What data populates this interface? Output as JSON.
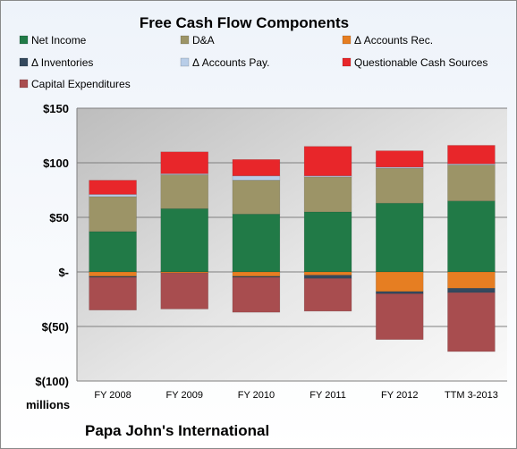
{
  "chart_data": {
    "type": "bar",
    "stacked": true,
    "title": "Free Cash Flow Components",
    "company": "Papa John's International",
    "y_unit_label": "millions",
    "categories": [
      "FY 2008",
      "FY 2009",
      "FY 2010",
      "FY 2011",
      "FY 2012",
      "TTM 3-2013"
    ],
    "ylim": [
      -100,
      150
    ],
    "yticks": [
      150,
      100,
      50,
      0,
      -50,
      -100
    ],
    "ytick_labels": [
      "$150",
      "$100",
      "$50",
      "$-",
      "$(50)",
      "$(100)"
    ],
    "grid": true,
    "legend_position": "top",
    "series": [
      {
        "name": "Net Income",
        "color": "#217a47",
        "values": [
          37,
          58,
          53,
          55,
          63,
          65
        ]
      },
      {
        "name": "D&A",
        "color": "#9c9467",
        "values": [
          32,
          31,
          31,
          32,
          32,
          33
        ]
      },
      {
        "name": "Δ Accounts Rec.",
        "color": "#e67e22",
        "values": [
          -4,
          -1,
          -4,
          -3,
          -18,
          -15
        ]
      },
      {
        "name": "Δ Inventories",
        "color": "#34495e",
        "values": [
          -1,
          0,
          -1,
          -3,
          -2,
          -4
        ]
      },
      {
        "name": "Δ Accounts Pay.",
        "color": "#b8cde8",
        "values": [
          2,
          1,
          4,
          1,
          1,
          1
        ]
      },
      {
        "name": "Questionable Cash Sources",
        "color": "#e8262a",
        "values": [
          13,
          20,
          15,
          27,
          15,
          17
        ]
      },
      {
        "name": "Capital Expenditures",
        "color": "#a84d4f",
        "values": [
          -30,
          -33,
          -32,
          -30,
          -42,
          -54
        ]
      }
    ]
  }
}
